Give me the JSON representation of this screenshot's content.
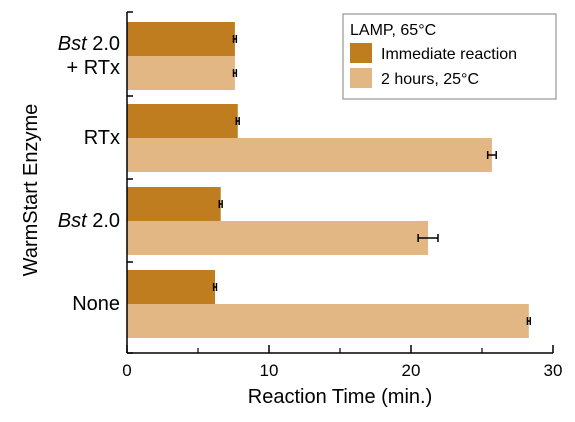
{
  "chart_data": {
    "type": "bar",
    "orientation": "horizontal",
    "title": "",
    "xlabel": "Reaction Time (min.)",
    "ylabel": "WarmStart Enzyme",
    "xlim": [
      0,
      30
    ],
    "xticks": [
      "0",
      "10",
      "20",
      "30"
    ],
    "grid": false,
    "legend_position": "top-right",
    "legend_title": "LAMP, 65°C",
    "categories": [
      {
        "lines": [
          {
            "italic": "Bst",
            "plain": " 2.0"
          },
          {
            "italic": "",
            "plain": "+ RTx"
          }
        ]
      },
      {
        "lines": [
          {
            "italic": "",
            "plain": "RTx"
          }
        ]
      },
      {
        "lines": [
          {
            "italic": "Bst",
            "plain": " 2.0"
          }
        ]
      },
      {
        "lines": [
          {
            "italic": "",
            "plain": "None"
          }
        ]
      }
    ],
    "series": [
      {
        "name": "Immediate reaction",
        "color": "#c07d1f",
        "values": [
          7.6,
          7.8,
          6.6,
          6.2
        ],
        "errors": [
          0.1,
          0.1,
          0.1,
          0.1
        ]
      },
      {
        "name": "2 hours, 25°C",
        "color": "#e2b784",
        "values": [
          7.6,
          25.7,
          21.2,
          28.3
        ],
        "errors": [
          0.1,
          0.3,
          0.7,
          0.1
        ]
      }
    ]
  }
}
